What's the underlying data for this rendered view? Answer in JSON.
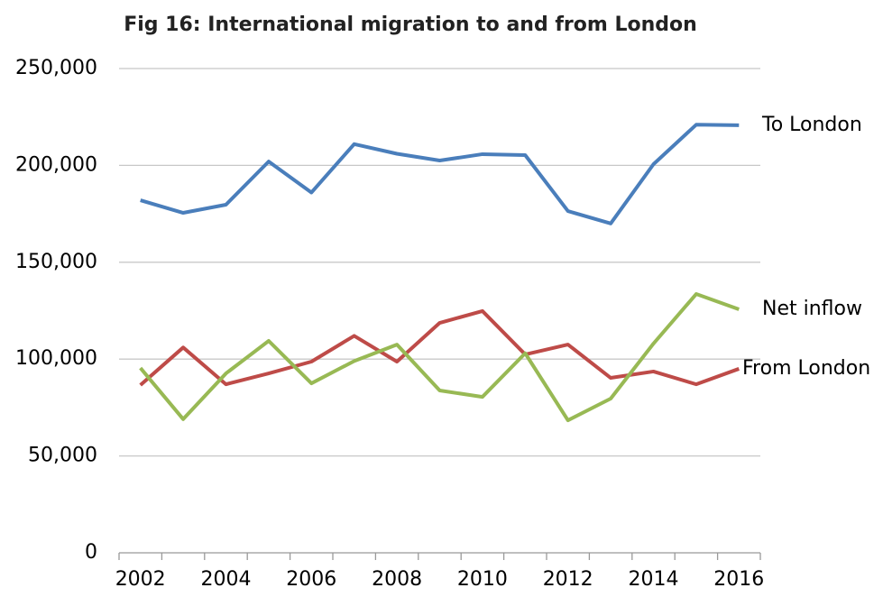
{
  "chart_data": {
    "type": "line",
    "title": "Fig 16: International migration to and from London",
    "categories": [
      "2002",
      null,
      "2004",
      null,
      "2006",
      null,
      "2008",
      null,
      "2010",
      null,
      "2012",
      null,
      "2014",
      null,
      "2016"
    ],
    "series": [
      {
        "name": "To London",
        "color": "#4a7ebb",
        "values": [
          182000,
          175500,
          179700,
          202000,
          186000,
          211000,
          206000,
          202500,
          205800,
          205300,
          176400,
          170000,
          200600,
          221000,
          220700
        ]
      },
      {
        "name": "From London",
        "color": "#be4b48",
        "values": [
          86600,
          106000,
          87000,
          92600,
          98700,
          112000,
          98700,
          118700,
          124800,
          102400,
          107500,
          90300,
          93600,
          87000,
          95000
        ]
      },
      {
        "name": "Net inflow",
        "color": "#98b954",
        "values": [
          95400,
          69000,
          92600,
          109400,
          87500,
          99000,
          107500,
          83800,
          80500,
          103000,
          68400,
          79600,
          108000,
          133600,
          125700
        ]
      }
    ],
    "ylim": [
      0,
      250000
    ],
    "yticks": [
      0,
      {
        "value": 50000,
        "label": "50,000"
      },
      {
        "value": 100000,
        "label": "100,000"
      },
      {
        "value": 150000,
        "label": "150,000"
      },
      {
        "value": 200000,
        "label": "200,000"
      },
      {
        "value": 250000,
        "label": "250,000"
      }
    ],
    "grid": true
  }
}
